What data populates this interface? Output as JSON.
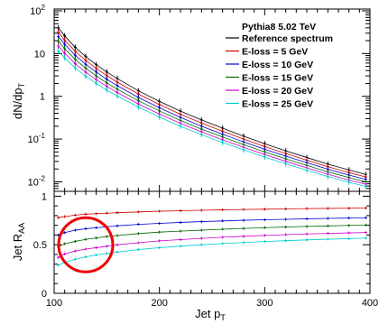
{
  "chart_data": [
    {
      "type": "line",
      "panel": "upper",
      "ylabel": "dN/dp",
      "ylabel_sub": "T",
      "yscale": "log",
      "ylim": [
        0.006,
        110
      ],
      "xlim": [
        100,
        400
      ],
      "y_ticks": [
        {
          "value": 100,
          "base": "10",
          "exp": "2"
        },
        {
          "value": 10,
          "base": "10",
          "exp": ""
        },
        {
          "value": 1,
          "base": "1",
          "exp": ""
        },
        {
          "value": 0.1,
          "base": "10",
          "exp": "-1"
        },
        {
          "value": 0.01,
          "base": "10",
          "exp": "-2"
        }
      ],
      "legend_position": "top-right",
      "legend_title": "Pythia8 5.02 TeV",
      "x": [
        104,
        110,
        120,
        130,
        140,
        150,
        160,
        180,
        200,
        220,
        240,
        260,
        280,
        300,
        320,
        340,
        360,
        380,
        396
      ],
      "series": [
        {
          "name": "Reference spectrum",
          "color": "#000000",
          "values": [
            40,
            26,
            14,
            8.5,
            5.5,
            3.7,
            2.6,
            1.35,
            0.76,
            0.45,
            0.28,
            0.18,
            0.117,
            0.078,
            0.053,
            0.037,
            0.026,
            0.019,
            0.0148
          ]
        },
        {
          "name": "E-loss = 5 GeV",
          "color": "#cc0000",
          "values": [
            32,
            20.5,
            11.3,
            6.9,
            4.5,
            3.05,
            2.15,
            1.13,
            0.64,
            0.38,
            0.237,
            0.153,
            0.1,
            0.067,
            0.046,
            0.032,
            0.0226,
            0.0165,
            0.013
          ]
        },
        {
          "name": "E-loss = 10 GeV",
          "color": "#0000cc",
          "values": [
            25,
            16.5,
            9.1,
            5.6,
            3.7,
            2.5,
            1.78,
            0.94,
            0.54,
            0.32,
            0.2,
            0.13,
            0.086,
            0.058,
            0.04,
            0.028,
            0.0197,
            0.0144,
            0.0114
          ]
        },
        {
          "name": "E-loss = 15 GeV",
          "color": "#006600",
          "values": [
            19.5,
            13,
            7.3,
            4.55,
            3,
            2.05,
            1.47,
            0.79,
            0.455,
            0.272,
            0.171,
            0.112,
            0.074,
            0.05,
            0.0345,
            0.0242,
            0.0171,
            0.0126,
            0.01
          ]
        },
        {
          "name": "E-loss = 20 GeV",
          "color": "#cc00cc",
          "values": [
            15,
            10.2,
            5.8,
            3.65,
            2.45,
            1.7,
            1.22,
            0.66,
            0.385,
            0.232,
            0.147,
            0.096,
            0.064,
            0.0435,
            0.0301,
            0.0212,
            0.015,
            0.011,
            0.0088
          ]
        },
        {
          "name": "E-loss = 25 GeV",
          "color": "#00cccc",
          "values": [
            11.5,
            7.9,
            4.6,
            2.95,
            2,
            1.4,
            1.01,
            0.56,
            0.328,
            0.199,
            0.127,
            0.083,
            0.056,
            0.038,
            0.0264,
            0.0187,
            0.0133,
            0.0098,
            0.0078
          ]
        }
      ]
    },
    {
      "type": "line",
      "panel": "lower",
      "xlabel": "Jet p",
      "xlabel_sub": "T",
      "ylabel": "Jet R",
      "ylabel_sub": "AA",
      "xlim": [
        100,
        400
      ],
      "ylim": [
        0,
        1.05
      ],
      "x_ticks": [
        "100",
        "200",
        "300",
        "400"
      ],
      "y_ticks": [
        "0",
        "0.5",
        "1"
      ],
      "annotation": "red circle highlighting the low-pT region",
      "x": [
        104,
        110,
        120,
        130,
        140,
        150,
        160,
        180,
        200,
        220,
        240,
        260,
        280,
        300,
        320,
        340,
        360,
        380,
        396
      ],
      "series": [
        {
          "name": "E-loss = 5 GeV",
          "color": "#cc0000",
          "values": [
            0.78,
            0.79,
            0.805,
            0.815,
            0.82,
            0.825,
            0.83,
            0.838,
            0.845,
            0.85,
            0.855,
            0.86,
            0.863,
            0.866,
            0.869,
            0.872,
            0.874,
            0.876,
            0.878
          ]
        },
        {
          "name": "E-loss = 10 GeV",
          "color": "#0000cc",
          "values": [
            0.6,
            0.625,
            0.65,
            0.665,
            0.675,
            0.685,
            0.695,
            0.71,
            0.72,
            0.73,
            0.738,
            0.745,
            0.752,
            0.757,
            0.762,
            0.767,
            0.771,
            0.775,
            0.778
          ]
        },
        {
          "name": "E-loss = 15 GeV",
          "color": "#006600",
          "values": [
            0.48,
            0.51,
            0.535,
            0.555,
            0.57,
            0.585,
            0.595,
            0.615,
            0.63,
            0.64,
            0.65,
            0.66,
            0.668,
            0.676,
            0.683,
            0.689,
            0.694,
            0.699,
            0.703
          ]
        },
        {
          "name": "E-loss = 20 GeV",
          "color": "#cc00cc",
          "values": [
            0.37,
            0.405,
            0.435,
            0.455,
            0.47,
            0.485,
            0.5,
            0.52,
            0.54,
            0.553,
            0.566,
            0.577,
            0.587,
            0.596,
            0.604,
            0.611,
            0.617,
            0.622,
            0.626
          ]
        },
        {
          "name": "E-loss = 25 GeV",
          "color": "#00cccc",
          "values": [
            0.29,
            0.32,
            0.35,
            0.375,
            0.395,
            0.41,
            0.425,
            0.45,
            0.47,
            0.486,
            0.5,
            0.512,
            0.523,
            0.533,
            0.542,
            0.55,
            0.557,
            0.563,
            0.568
          ]
        }
      ],
      "circle_color": "#ee0000"
    }
  ]
}
